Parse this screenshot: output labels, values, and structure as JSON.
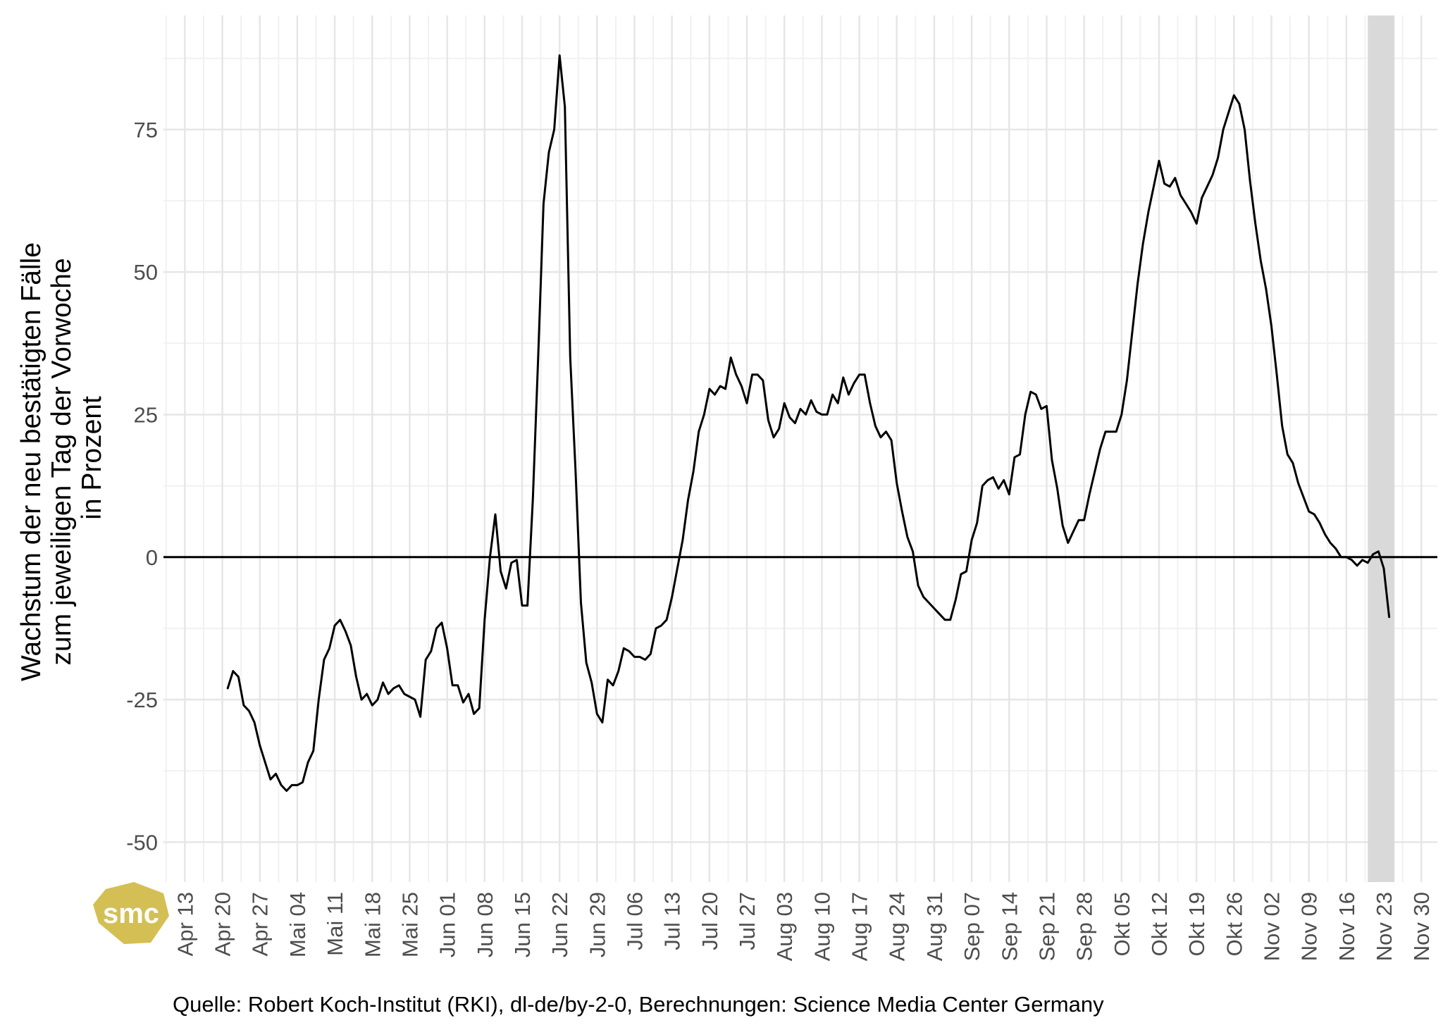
{
  "chart_data": {
    "type": "line",
    "ylabel_lines": [
      "Wachstum der neu bestätigten Fälle",
      "zum jeweiligen Tag der Vorwoche",
      "in Prozent"
    ],
    "caption": "Quelle: Robert Koch-Institut (RKI), dl-de/by-2-0, Berechnungen: Science Media Center Germany",
    "y_ticks": [
      -50,
      -25,
      0,
      25,
      50,
      75
    ],
    "y_tick_labels": [
      "-50",
      "-25",
      "0",
      "25",
      "50",
      "75"
    ],
    "ylim": [
      -57,
      95
    ],
    "xlim": [
      "2020-04-09",
      "2020-12-03"
    ],
    "x_ticks": [
      "2020-04-13",
      "2020-04-20",
      "2020-04-27",
      "2020-05-04",
      "2020-05-11",
      "2020-05-18",
      "2020-05-25",
      "2020-06-01",
      "2020-06-08",
      "2020-06-15",
      "2020-06-22",
      "2020-06-29",
      "2020-07-06",
      "2020-07-13",
      "2020-07-20",
      "2020-07-27",
      "2020-08-03",
      "2020-08-10",
      "2020-08-17",
      "2020-08-24",
      "2020-08-31",
      "2020-09-07",
      "2020-09-14",
      "2020-09-21",
      "2020-09-28",
      "2020-10-05",
      "2020-10-12",
      "2020-10-19",
      "2020-10-26",
      "2020-11-02",
      "2020-11-09",
      "2020-11-16",
      "2020-11-23",
      "2020-11-30"
    ],
    "x_tick_labels": [
      "Apr 13",
      "Apr 20",
      "Apr 27",
      "Mai 04",
      "Mai 11",
      "Mai 18",
      "Mai 25",
      "Jun 01",
      "Jun 08",
      "Jun 15",
      "Jun 22",
      "Jun 29",
      "Jul 06",
      "Jul 13",
      "Jul 20",
      "Jul 27",
      "Aug 03",
      "Aug 10",
      "Aug 17",
      "Aug 24",
      "Aug 31",
      "Sep 07",
      "Sep 14",
      "Sep 21",
      "Sep 28",
      "Okt 05",
      "Okt 12",
      "Okt 19",
      "Okt 26",
      "Nov 02",
      "Nov 09",
      "Nov 16",
      "Nov 23",
      "Nov 30"
    ],
    "reference_line_y": 0,
    "shaded_range": [
      "2020-11-20",
      "2020-11-25"
    ],
    "shaded_color": "#d9d9d9",
    "grid": true,
    "logo_text": "smc",
    "logo_color": "#d4bf55",
    "series": [
      {
        "color": "#000000",
        "x": [
          "2020-04-21",
          "2020-04-22",
          "2020-04-23",
          "2020-04-24",
          "2020-04-25",
          "2020-04-26",
          "2020-04-27",
          "2020-04-28",
          "2020-04-29",
          "2020-04-30",
          "2020-05-01",
          "2020-05-02",
          "2020-05-03",
          "2020-05-04",
          "2020-05-05",
          "2020-05-06",
          "2020-05-07",
          "2020-05-08",
          "2020-05-09",
          "2020-05-10",
          "2020-05-11",
          "2020-05-12",
          "2020-05-13",
          "2020-05-14",
          "2020-05-15",
          "2020-05-16",
          "2020-05-17",
          "2020-05-18",
          "2020-05-19",
          "2020-05-20",
          "2020-05-21",
          "2020-05-22",
          "2020-05-23",
          "2020-05-24",
          "2020-05-25",
          "2020-05-26",
          "2020-05-27",
          "2020-05-28",
          "2020-05-29",
          "2020-05-30",
          "2020-05-31",
          "2020-06-01",
          "2020-06-02",
          "2020-06-03",
          "2020-06-04",
          "2020-06-05",
          "2020-06-06",
          "2020-06-07",
          "2020-06-08",
          "2020-06-09",
          "2020-06-10",
          "2020-06-11",
          "2020-06-12",
          "2020-06-13",
          "2020-06-14",
          "2020-06-15",
          "2020-06-16",
          "2020-06-17",
          "2020-06-18",
          "2020-06-19",
          "2020-06-20",
          "2020-06-21",
          "2020-06-22",
          "2020-06-23",
          "2020-06-24",
          "2020-06-25",
          "2020-06-26",
          "2020-06-27",
          "2020-06-28",
          "2020-06-29",
          "2020-06-30",
          "2020-07-01",
          "2020-07-02",
          "2020-07-03",
          "2020-07-04",
          "2020-07-05",
          "2020-07-06",
          "2020-07-07",
          "2020-07-08",
          "2020-07-09",
          "2020-07-10",
          "2020-07-11",
          "2020-07-12",
          "2020-07-13",
          "2020-07-14",
          "2020-07-15",
          "2020-07-16",
          "2020-07-17",
          "2020-07-18",
          "2020-07-19",
          "2020-07-20",
          "2020-07-21",
          "2020-07-22",
          "2020-07-23",
          "2020-07-24",
          "2020-07-25",
          "2020-07-26",
          "2020-07-27",
          "2020-07-28",
          "2020-07-29",
          "2020-07-30",
          "2020-07-31",
          "2020-08-01",
          "2020-08-02",
          "2020-08-03",
          "2020-08-04",
          "2020-08-05",
          "2020-08-06",
          "2020-08-07",
          "2020-08-08",
          "2020-08-09",
          "2020-08-10",
          "2020-08-11",
          "2020-08-12",
          "2020-08-13",
          "2020-08-14",
          "2020-08-15",
          "2020-08-16",
          "2020-08-17",
          "2020-08-18",
          "2020-08-19",
          "2020-08-20",
          "2020-08-21",
          "2020-08-22",
          "2020-08-23",
          "2020-08-24",
          "2020-08-25",
          "2020-08-26",
          "2020-08-27",
          "2020-08-28",
          "2020-08-29",
          "2020-08-30",
          "2020-08-31",
          "2020-09-01",
          "2020-09-02",
          "2020-09-03",
          "2020-09-04",
          "2020-09-05",
          "2020-09-06",
          "2020-09-07",
          "2020-09-08",
          "2020-09-09",
          "2020-09-10",
          "2020-09-11",
          "2020-09-12",
          "2020-09-13",
          "2020-09-14",
          "2020-09-15",
          "2020-09-16",
          "2020-09-17",
          "2020-09-18",
          "2020-09-19",
          "2020-09-20",
          "2020-09-21",
          "2020-09-22",
          "2020-09-23",
          "2020-09-24",
          "2020-09-25",
          "2020-09-26",
          "2020-09-27",
          "2020-09-28",
          "2020-09-29",
          "2020-09-30",
          "2020-10-01",
          "2020-10-02",
          "2020-10-03",
          "2020-10-04",
          "2020-10-05",
          "2020-10-06",
          "2020-10-07",
          "2020-10-08",
          "2020-10-09",
          "2020-10-10",
          "2020-10-11",
          "2020-10-12",
          "2020-10-13",
          "2020-10-14",
          "2020-10-15",
          "2020-10-16",
          "2020-10-17",
          "2020-10-18",
          "2020-10-19",
          "2020-10-20",
          "2020-10-21",
          "2020-10-22",
          "2020-10-23",
          "2020-10-24",
          "2020-10-25",
          "2020-10-26",
          "2020-10-27",
          "2020-10-28",
          "2020-10-29",
          "2020-10-30",
          "2020-10-31",
          "2020-11-01",
          "2020-11-02",
          "2020-11-03",
          "2020-11-04",
          "2020-11-05",
          "2020-11-06",
          "2020-11-07",
          "2020-11-08",
          "2020-11-09",
          "2020-11-10",
          "2020-11-11",
          "2020-11-12",
          "2020-11-13",
          "2020-11-14",
          "2020-11-15",
          "2020-11-16",
          "2020-11-17",
          "2020-11-18",
          "2020-11-19",
          "2020-11-20",
          "2020-11-21",
          "2020-11-22",
          "2020-11-23",
          "2020-11-24"
        ],
        "y": [
          -23,
          -20,
          -21,
          -26,
          -27,
          -29,
          -33,
          -36,
          -39,
          -38,
          -40,
          -41,
          -40,
          -40,
          -39.5,
          -36,
          -34,
          -25,
          -18,
          -16,
          -12,
          -11,
          -13,
          -15.5,
          -21,
          -25,
          -24,
          -26,
          -25,
          -22,
          -24,
          -23,
          -22.5,
          -24,
          -24.5,
          -25,
          -28,
          -18,
          -16.5,
          -12.5,
          -11.5,
          -16,
          -22.5,
          -22.5,
          -25.5,
          -24,
          -27.5,
          -26.5,
          -11,
          0,
          7.5,
          -2.5,
          -5.5,
          -1,
          -0.5,
          -8.5,
          -8.5,
          10,
          35,
          62,
          71,
          75,
          88,
          79,
          35,
          15,
          -8,
          -18.5,
          -22,
          -27.5,
          -29,
          -21.5,
          -22.5,
          -20,
          -16,
          -16.5,
          -17.5,
          -17.5,
          -18,
          -17,
          -12.5,
          -12,
          -11,
          -7,
          -2,
          3,
          10,
          15,
          22,
          25,
          29.5,
          28.5,
          30,
          29.5,
          35,
          32,
          30,
          27,
          32,
          32,
          31,
          24,
          21,
          22.5,
          27,
          24.5,
          23.5,
          26,
          25,
          27.5,
          25.5,
          25,
          25,
          28.5,
          27,
          31.5,
          28.5,
          30.5,
          32,
          32,
          27,
          23,
          21,
          22,
          20.5,
          13,
          8,
          3.5,
          1,
          -5,
          -7,
          -8,
          -9,
          -10,
          -11,
          -11,
          -7.5,
          -3,
          -2.5,
          3,
          6,
          12.5,
          13.5,
          14,
          12,
          13.5,
          11,
          17.5,
          18,
          25,
          29,
          28.5,
          26,
          26.5,
          17,
          12,
          5.5,
          2.5,
          4.5,
          6.5,
          6.5,
          11,
          15,
          19,
          22,
          22,
          22,
          25,
          31,
          39.5,
          48,
          55,
          60.5,
          65,
          69.5,
          65.5,
          65,
          66.5,
          63.5,
          62,
          60.5,
          58.5,
          63,
          65,
          67,
          70,
          75,
          78,
          81,
          79.5,
          75,
          66,
          58.5,
          52,
          47,
          40.5,
          32,
          23,
          18,
          16.5,
          13,
          10.5,
          8,
          7.5,
          6,
          4,
          2.5,
          1.5,
          0,
          0,
          -0.5,
          -1.5,
          -0.5,
          -1,
          0.5,
          1,
          -2,
          -10.5
        ]
      }
    ]
  }
}
